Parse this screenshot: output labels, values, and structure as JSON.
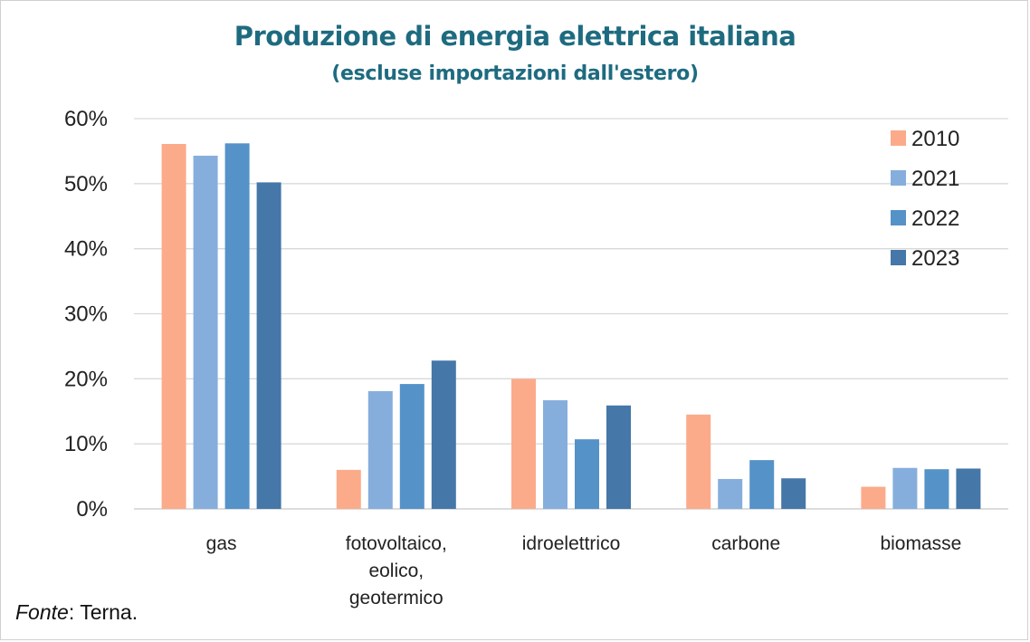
{
  "chart_data": {
    "type": "bar",
    "title": "Produzione di energia elettrica italiana",
    "subtitle": "(escluse importazioni dall'estero)",
    "categories": [
      [
        "gas"
      ],
      [
        "fotovoltaico,",
        "eolico,",
        "geotermico"
      ],
      [
        "idroelettrico"
      ],
      [
        "carbone"
      ],
      [
        "biomasse"
      ]
    ],
    "series": [
      {
        "name": "2010",
        "color": "#fbab8a",
        "values": [
          56.1,
          6.0,
          20.0,
          14.5,
          3.4
        ]
      },
      {
        "name": "2021",
        "color": "#86aedc",
        "values": [
          54.3,
          18.1,
          16.7,
          4.6,
          6.3
        ]
      },
      {
        "name": "2022",
        "color": "#5592c8",
        "values": [
          56.2,
          19.2,
          10.7,
          7.5,
          6.1
        ]
      },
      {
        "name": "2023",
        "color": "#4577a8",
        "values": [
          50.2,
          22.8,
          15.9,
          4.7,
          6.2
        ]
      }
    ],
    "yticks": [
      "0%",
      "10%",
      "20%",
      "30%",
      "40%",
      "50%",
      "60%"
    ],
    "ylim": [
      0,
      60
    ],
    "grid": true,
    "legend_position": "top-right"
  },
  "source": {
    "label": "Fonte",
    "text": ": Terna."
  }
}
